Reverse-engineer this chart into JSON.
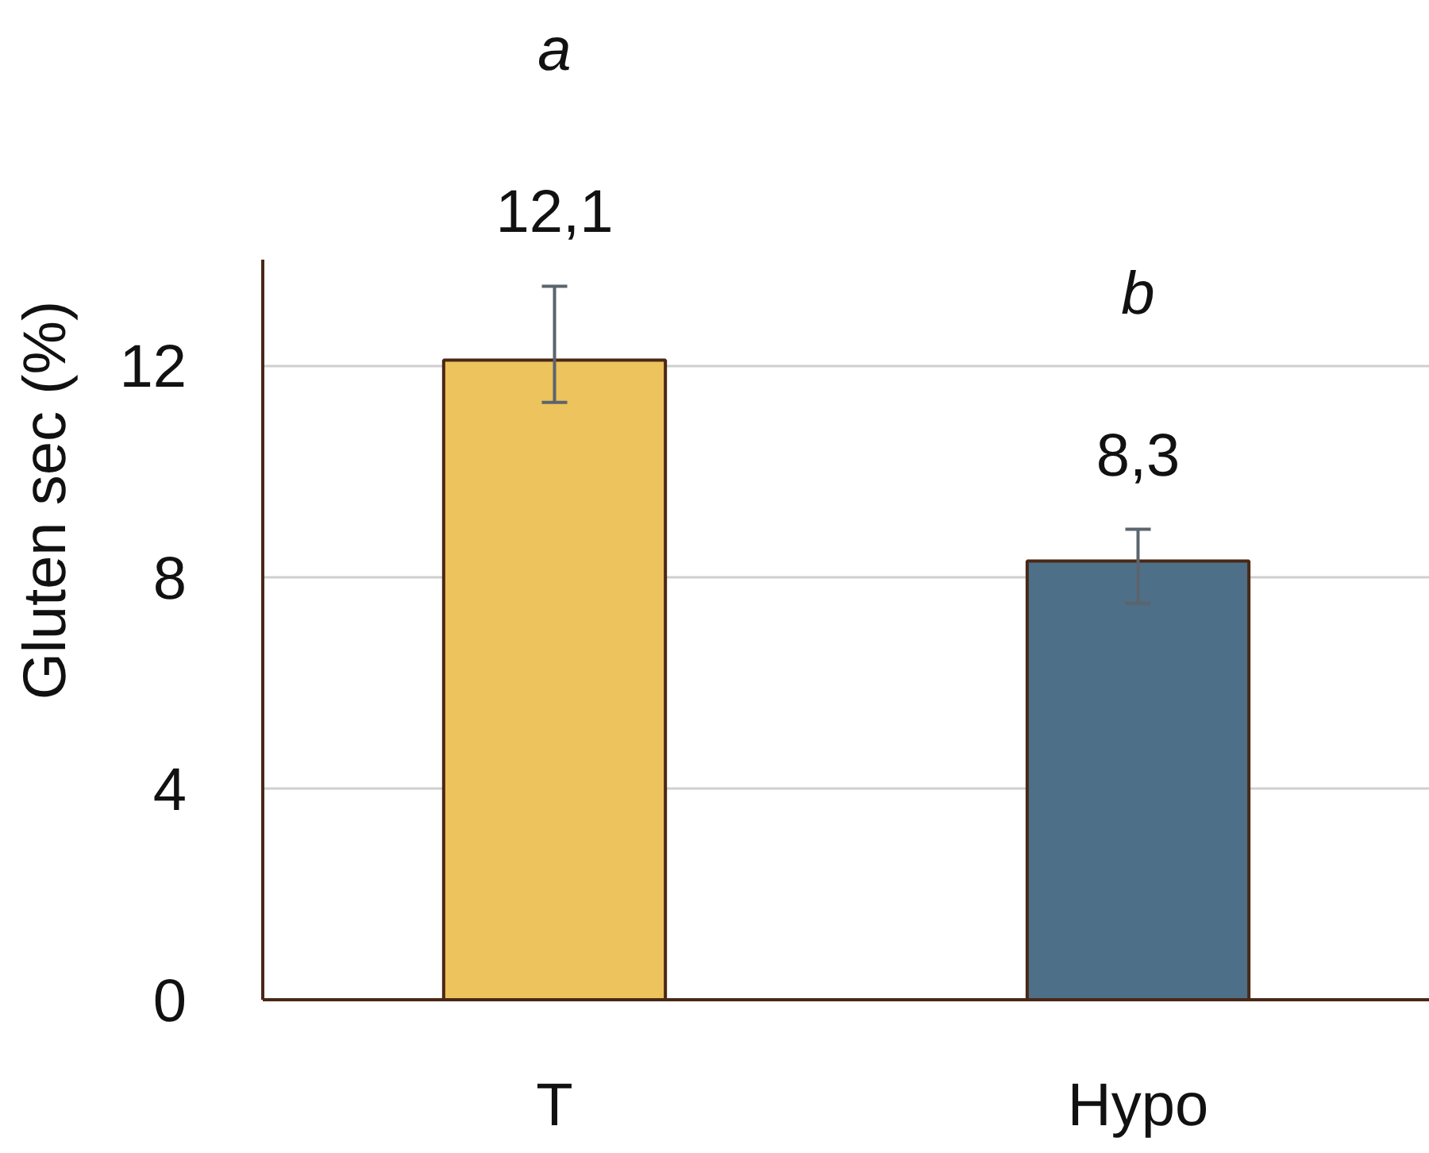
{
  "chart_data": {
    "type": "bar",
    "categories": [
      "T",
      "Hypo"
    ],
    "values": [
      12.1,
      8.3
    ],
    "colors": [
      "#ecc35c",
      "#4d6f87"
    ],
    "errors": [
      [
        11.3,
        13.5
      ],
      [
        7.5,
        8.9
      ]
    ],
    "value_labels": [
      "12,1",
      "8,3"
    ],
    "ylabel": "Gluten sec (%)",
    "ylim": [
      0,
      14
    ],
    "yticks": [
      0,
      4,
      8,
      12
    ],
    "grid": "y",
    "annotations": [
      "a",
      "b"
    ]
  }
}
